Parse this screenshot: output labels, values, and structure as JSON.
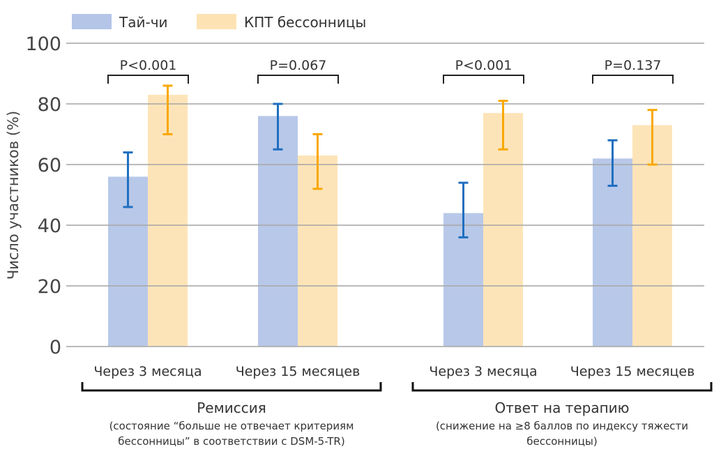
{
  "chart_data": {
    "type": "bar",
    "ylabel": "Число участников (%)",
    "ylim": [
      0,
      100
    ],
    "yticks": [
      0,
      20,
      40,
      60,
      80,
      100
    ],
    "grid": true,
    "legend_position": "top-left",
    "colors": {
      "tai_chi_bar": "#b4c5e8",
      "tai_chi_error": "#1f6fc0",
      "cbt_bar": "#fde3b4",
      "cbt_error": "#f9a800"
    },
    "series": [
      {
        "name": "Тай-чи",
        "values": [
          56,
          76,
          44,
          62
        ],
        "ci_low": [
          46,
          65,
          36,
          53
        ],
        "ci_high": [
          64,
          80,
          54,
          68
        ]
      },
      {
        "name": "КПТ бессонницы",
        "values": [
          83,
          63,
          77,
          73
        ],
        "ci_low": [
          70,
          52,
          65,
          60
        ],
        "ci_high": [
          86,
          70,
          81,
          78
        ]
      }
    ],
    "categories": [
      "Через 3 месяца",
      "Через 15 месяцев",
      "Через 3 месяца",
      "Через 15 месяцев"
    ],
    "p_values": [
      "P<0.001",
      "P=0.067",
      "P<0.001",
      "P=0.137"
    ],
    "groups": [
      {
        "title": "Ремиссия",
        "note_line1": "(состояние “больше не отвечает критериям",
        "note_line2": "бессонницы” в соответствии с DSM-5-TR)"
      },
      {
        "title": "Ответ на терапию",
        "note_line1": "(снижение на ≥8 баллов по индексу тяжести",
        "note_line2": "бессонницы)"
      }
    ]
  }
}
